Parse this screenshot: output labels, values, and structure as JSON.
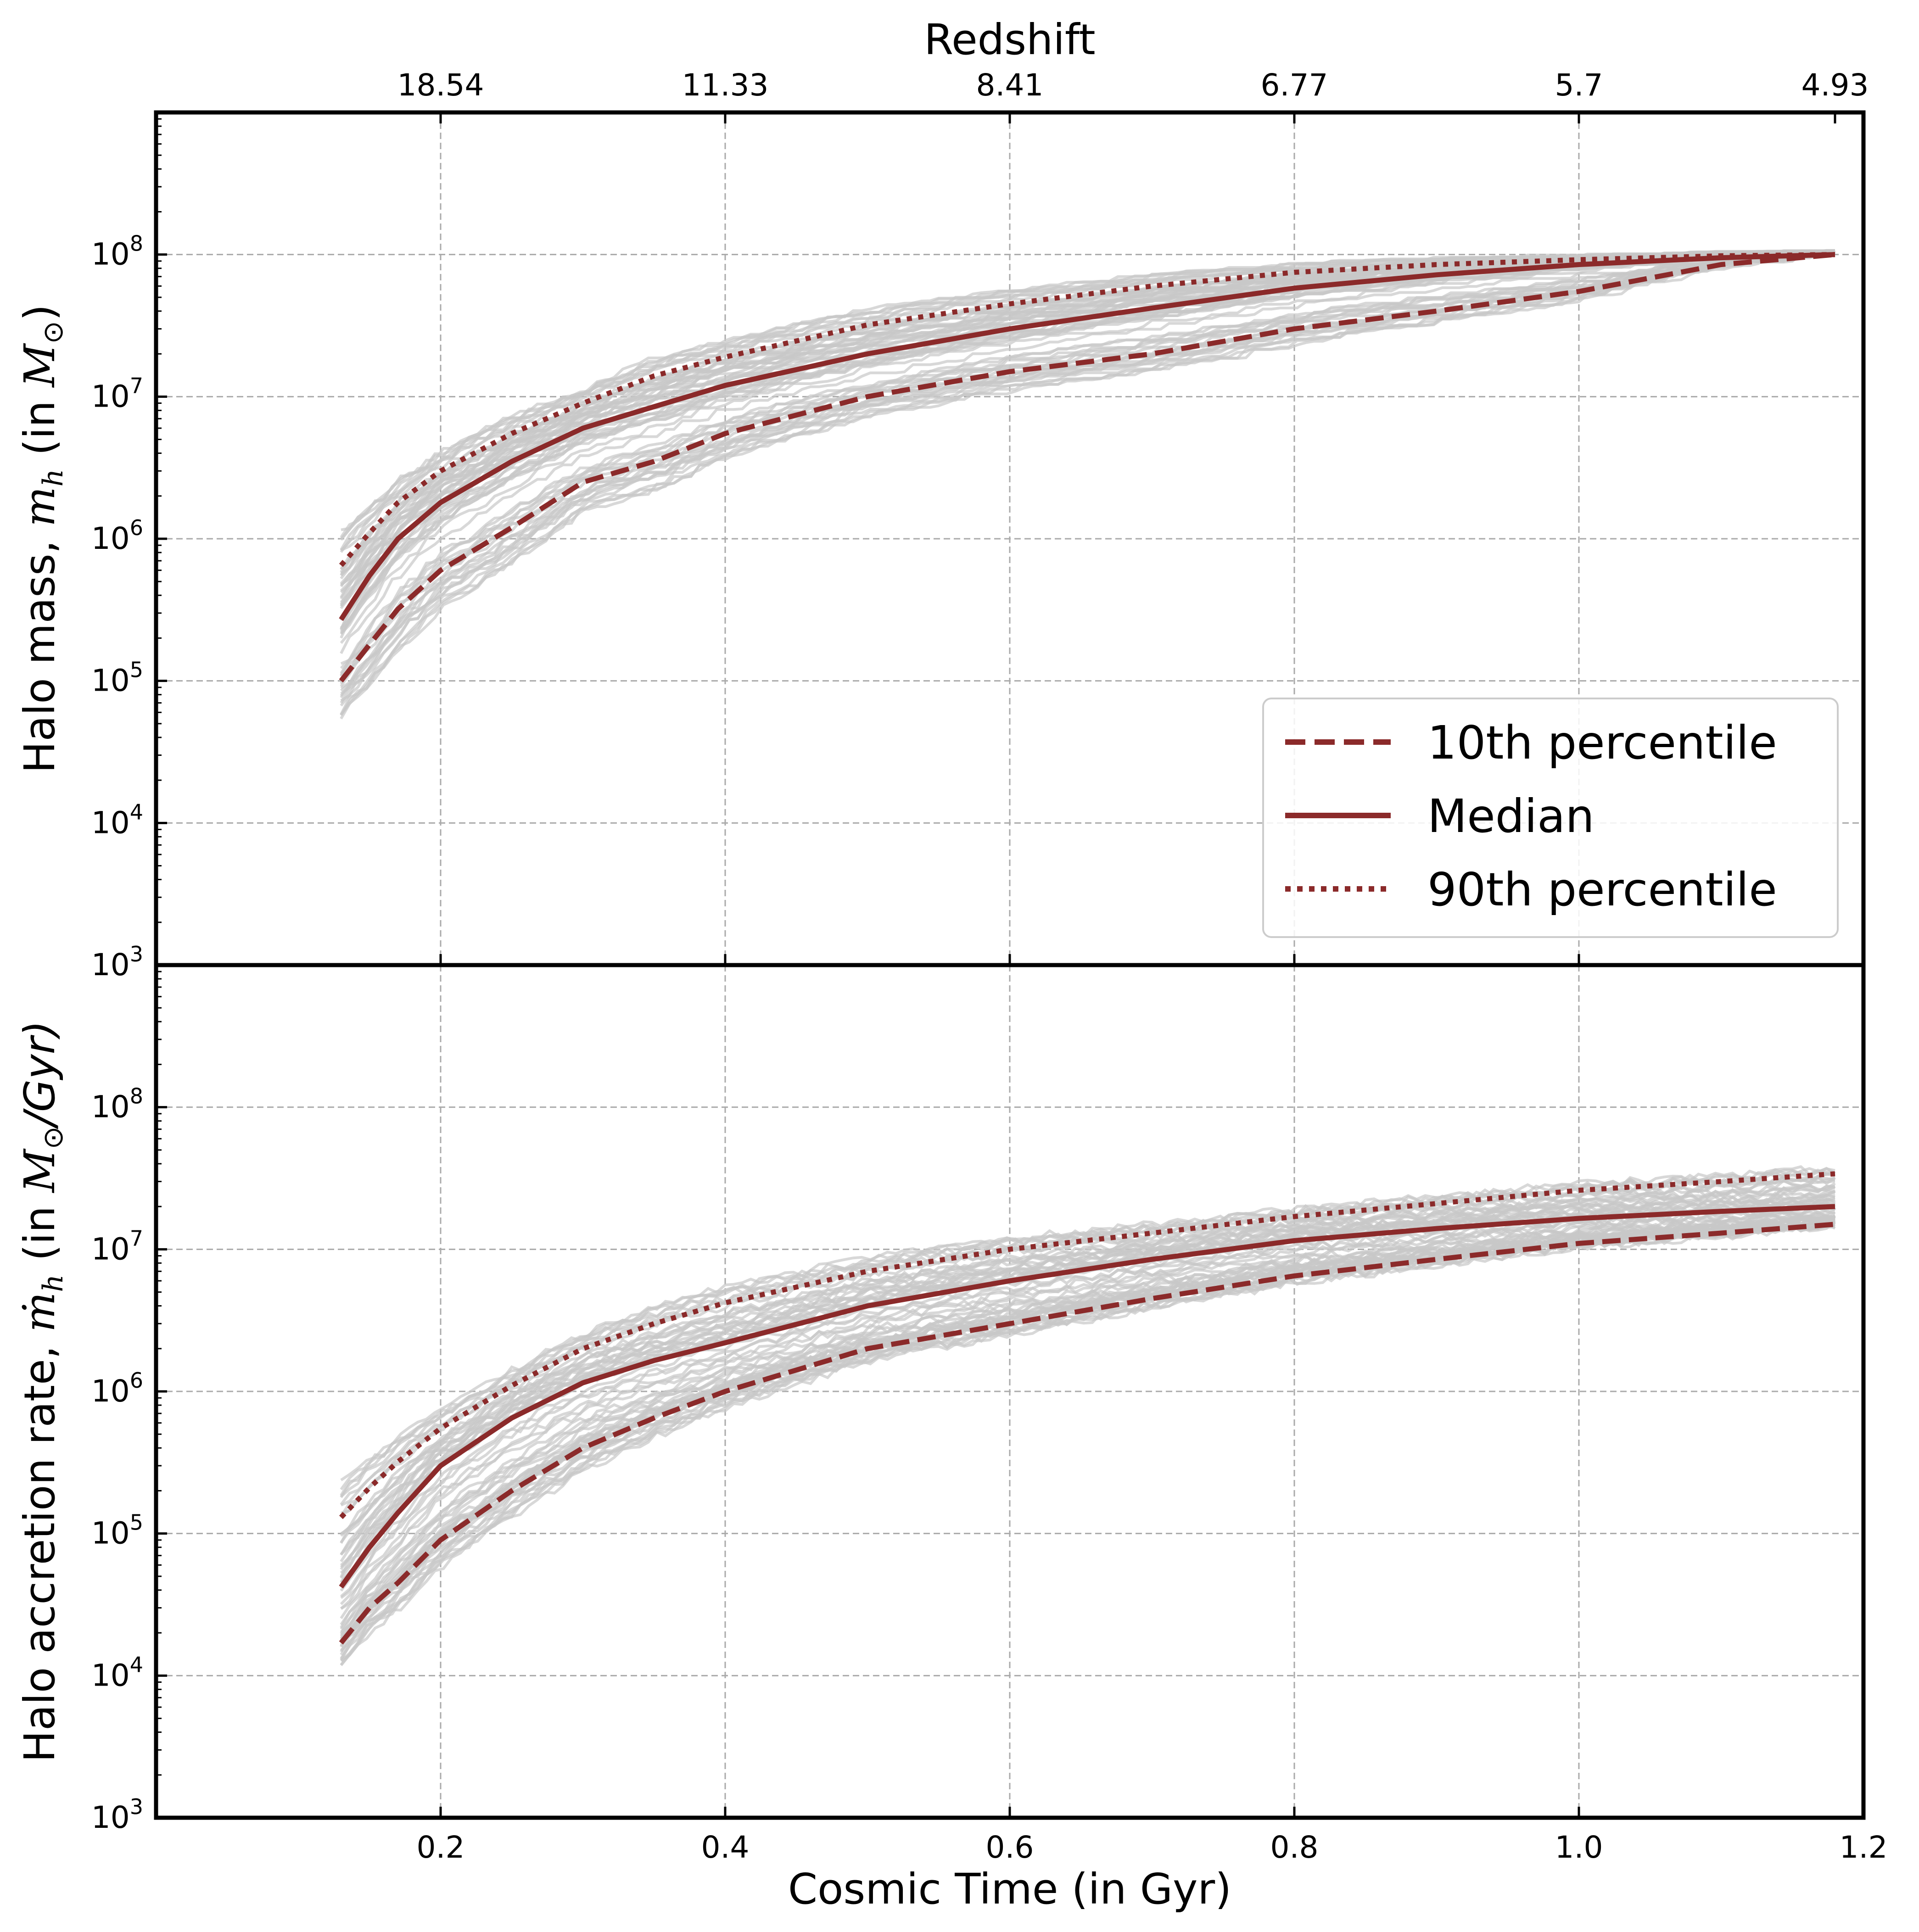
{
  "chart_data": {
    "type": "line",
    "top_axis": {
      "label": "Redshift",
      "tick_labels": [
        "18.54",
        "11.33",
        "8.41",
        "6.77",
        "5.7",
        "4.93"
      ],
      "tick_times": [
        0.2,
        0.4,
        0.6,
        0.8,
        1.0,
        1.18
      ]
    },
    "x_axis": {
      "label": "Cosmic Time (in Gyr)",
      "lim": [
        0.0,
        1.2
      ],
      "ticks": [
        0.2,
        0.4,
        0.6,
        0.8,
        1.0,
        1.2
      ],
      "tick_labels": [
        "0.2",
        "0.4",
        "0.6",
        "0.8",
        "1.0",
        "1.2"
      ]
    },
    "grid": true,
    "colors": {
      "percentile": "#8b2a2a",
      "samples": "#c7c7c7"
    },
    "legend": {
      "location": "lower-right of top panel",
      "entries": [
        {
          "label": "10th percentile",
          "style": "dashed"
        },
        {
          "label": "Median",
          "style": "solid"
        },
        {
          "label": "90th percentile",
          "style": "dotted"
        }
      ]
    },
    "panels": [
      {
        "name": "halo-mass",
        "ylabel_prefix": "Halo mass, ",
        "ylabel_symbol": "m",
        "ylabel_subscript": "h",
        "ylabel_mid": " (in ",
        "ylabel_unit": "M",
        "ylabel_unit_sub": "⊙",
        "ylabel_close": ")",
        "y_scale": "log",
        "ylim": [
          1000,
          1000000000
        ],
        "y_ticks": [
          1000,
          10000,
          100000,
          1000000,
          10000000,
          100000000
        ],
        "y_tick_exponents": [
          "3",
          "4",
          "5",
          "6",
          "7",
          "8"
        ],
        "series": [
          {
            "name": "10th percentile",
            "style": "dashed",
            "x": [
              0.13,
              0.15,
              0.17,
              0.2,
              0.25,
              0.3,
              0.35,
              0.4,
              0.5,
              0.6,
              0.7,
              0.8,
              0.9,
              1.0,
              1.1,
              1.18
            ],
            "y": [
              100000,
              180000,
              320000,
              600000,
              1200000,
              2500000,
              3500000,
              5500000,
              10000000,
              15000000,
              20000000,
              30000000,
              40000000,
              55000000,
              85000000,
              100000000
            ]
          },
          {
            "name": "Median",
            "style": "solid",
            "x": [
              0.13,
              0.15,
              0.17,
              0.2,
              0.25,
              0.3,
              0.35,
              0.4,
              0.5,
              0.6,
              0.7,
              0.8,
              0.9,
              1.0,
              1.1,
              1.18
            ],
            "y": [
              270000,
              550000,
              1000000,
              1800000,
              3500000,
              6000000,
              8500000,
              12000000,
              20000000,
              30000000,
              42000000,
              58000000,
              72000000,
              85000000,
              95000000,
              100000000
            ]
          },
          {
            "name": "90th percentile",
            "style": "dotted",
            "x": [
              0.13,
              0.15,
              0.17,
              0.2,
              0.25,
              0.3,
              0.35,
              0.4,
              0.5,
              0.6,
              0.7,
              0.8,
              0.9,
              1.0,
              1.1,
              1.18
            ],
            "y": [
              650000,
              1100000,
              1800000,
              3000000,
              5500000,
              9000000,
              14000000,
              19000000,
              32000000,
              45000000,
              60000000,
              75000000,
              85000000,
              92000000,
              98000000,
              100000000
            ]
          }
        ]
      },
      {
        "name": "accretion-rate",
        "ylabel_prefix": "Halo accretion rate, ",
        "ylabel_symbol": "ṁ",
        "ylabel_subscript": "h",
        "ylabel_mid": " (in ",
        "ylabel_unit": "M",
        "ylabel_unit_sub": "⊙",
        "ylabel_close": "/Gyr)",
        "y_scale": "log",
        "ylim": [
          1000,
          1000000000
        ],
        "y_ticks": [
          1000,
          10000,
          100000,
          1000000,
          10000000,
          100000000
        ],
        "y_tick_exponents": [
          "3",
          "4",
          "5",
          "6",
          "7",
          "8"
        ],
        "series": [
          {
            "name": "10th percentile",
            "style": "dashed",
            "x": [
              0.13,
              0.15,
              0.17,
              0.2,
              0.25,
              0.3,
              0.35,
              0.4,
              0.5,
              0.6,
              0.7,
              0.8,
              0.9,
              1.0,
              1.1,
              1.18
            ],
            "y": [
              17000,
              30000,
              45000,
              90000,
              200000,
              400000,
              650000,
              1000000,
              2000000,
              3000000,
              4500000,
              6500000,
              8500000,
              11000000,
              13000000,
              15000000
            ]
          },
          {
            "name": "Median",
            "style": "solid",
            "x": [
              0.13,
              0.15,
              0.17,
              0.2,
              0.25,
              0.3,
              0.35,
              0.4,
              0.5,
              0.6,
              0.7,
              0.8,
              0.9,
              1.0,
              1.1,
              1.18
            ],
            "y": [
              42000,
              80000,
              140000,
              300000,
              650000,
              1150000,
              1650000,
              2200000,
              4000000,
              6000000,
              8500000,
              11500000,
              14000000,
              16500000,
              18500000,
              20000000
            ]
          },
          {
            "name": "90th percentile",
            "style": "dotted",
            "x": [
              0.13,
              0.15,
              0.17,
              0.2,
              0.25,
              0.3,
              0.35,
              0.4,
              0.5,
              0.6,
              0.7,
              0.8,
              0.9,
              1.0,
              1.1,
              1.18
            ],
            "y": [
              130000,
              210000,
              320000,
              550000,
              1100000,
              2000000,
              3000000,
              4200000,
              7000000,
              10000000,
              13000000,
              17000000,
              21000000,
              26000000,
              30000000,
              34000000
            ]
          }
        ]
      }
    ]
  }
}
